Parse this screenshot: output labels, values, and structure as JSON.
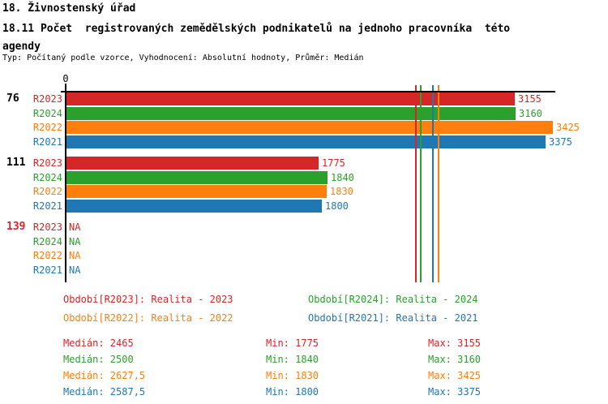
{
  "header": {
    "title": "18. Živnostenský úřad",
    "subtitle": "18.11 Počet  registrovaných zemědělských podnikatelů na jednoho pracovníka  této agendy",
    "meta": "Typ: Počítaný podle vzorce, Vyhodnocení: Absolutní hodnoty, Průměr: Medián"
  },
  "chart_data": {
    "type": "bar",
    "orientation": "horizontal",
    "value_axis": {
      "zero_label": "0",
      "range": [
        0,
        3450
      ],
      "gridlines": false
    },
    "row_order": [
      "R2023",
      "R2024",
      "R2022",
      "R2021"
    ],
    "series": [
      {
        "id": "R2023",
        "label": "R2023",
        "color": "#d62728",
        "legend": "Období[R2023]: Realita - 2023",
        "median": 2465,
        "stats": {
          "median": "Medián: 2465",
          "min": "Min: 1775",
          "max": "Max: 3155"
        }
      },
      {
        "id": "R2024",
        "label": "R2024",
        "color": "#2ca02c",
        "legend": "Období[R2024]: Realita - 2024",
        "median": 2500,
        "stats": {
          "median": "Medián: 2500",
          "min": "Min: 1840",
          "max": "Max: 3160"
        }
      },
      {
        "id": "R2022",
        "label": "R2022",
        "color": "#ff7f0e",
        "legend": "Období[R2022]: Realita - 2022",
        "median": 2627.5,
        "stats": {
          "median": "Medián: 2627,5",
          "min": "Min: 1830",
          "max": "Max: 3425"
        }
      },
      {
        "id": "R2021",
        "label": "R2021",
        "color": "#1f77b4",
        "legend": "Období[R2021]: Realita - 2021",
        "median": 2587.5,
        "stats": {
          "median": "Medián: 2587,5",
          "min": "Min: 1800",
          "max": "Max: 3375"
        }
      }
    ],
    "groups": [
      {
        "label": "76",
        "label_color": "#000000",
        "na_text": "NA",
        "values": {
          "R2023": 3155,
          "R2024": 3160,
          "R2022": 3425,
          "R2021": 3375
        }
      },
      {
        "label": "111",
        "label_color": "#000000",
        "na_text": "NA",
        "values": {
          "R2023": 1775,
          "R2024": 1840,
          "R2022": 1830,
          "R2021": 1800
        }
      },
      {
        "label": "139",
        "label_color": "#d62728",
        "na_text": "NA",
        "values": {
          "R2023": null,
          "R2024": null,
          "R2022": null,
          "R2021": null
        }
      }
    ],
    "median_lines_shown": true
  },
  "legend_layout": {
    "left_column": [
      "R2023",
      "R2022"
    ],
    "right_column": [
      "R2024",
      "R2021"
    ]
  },
  "stats_rows": [
    "R2023",
    "R2024",
    "R2022",
    "R2021"
  ]
}
